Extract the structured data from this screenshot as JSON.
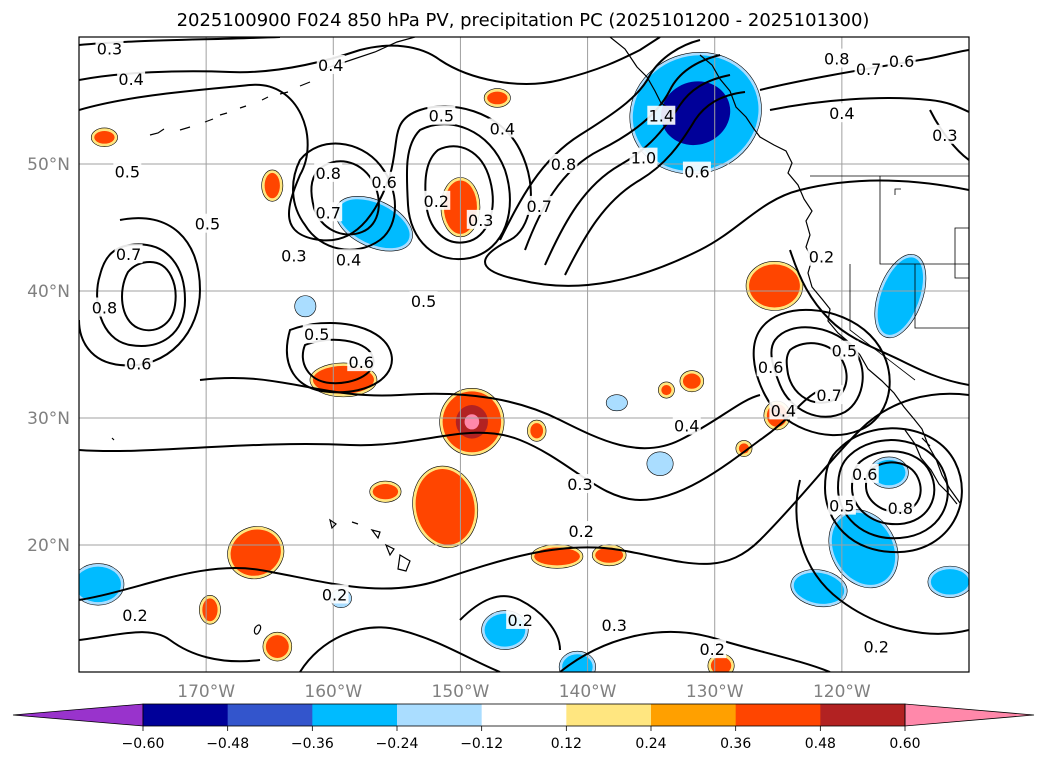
{
  "chart_data": {
    "type": "contour",
    "title": "2025100900 F024 850 hPa PV, precipitation PC (2025101200 - 2025101300)",
    "lon_range": [
      -180,
      -110
    ],
    "lat_range": [
      10,
      60
    ],
    "lon_ticks": [
      -170,
      -160,
      -150,
      -140,
      -130,
      -120
    ],
    "lon_tick_labels": [
      "170°W",
      "160°W",
      "150°W",
      "140°W",
      "130°W",
      "120°W"
    ],
    "lat_ticks": [
      20,
      30,
      40,
      50
    ],
    "lat_tick_labels": [
      "20°N",
      "30°N",
      "40°N",
      "50°N"
    ],
    "grid": true,
    "colorbar": {
      "orientation": "horizontal",
      "extend": "both",
      "boundaries": [
        -0.6,
        -0.48,
        -0.36,
        -0.24,
        -0.12,
        0.12,
        0.24,
        0.36,
        0.48,
        0.6
      ],
      "tick_labels": [
        "−0.60",
        "−0.48",
        "−0.36",
        "−0.24",
        "−0.12",
        "0.12",
        "0.24",
        "0.36",
        "0.48",
        "0.60"
      ],
      "colors": [
        "#9933cc",
        "#000099",
        "#3355cc",
        "#00bbff",
        "#aaddff",
        "#ffffff",
        "#ffe680",
        "#ffa000",
        "#ff4500",
        "#b22222",
        "#ff88aa"
      ]
    },
    "pv_contour_levels": [
      0.2,
      0.3,
      0.4,
      0.5,
      0.6,
      0.7,
      0.8,
      1.0,
      1.4
    ],
    "contour_labels": [
      {
        "text": "0.3",
        "lon": -177.6,
        "lat": 59.1
      },
      {
        "text": "0.4",
        "lon": -175.9,
        "lat": 56.7
      },
      {
        "text": "0.4",
        "lon": -160.2,
        "lat": 57.8
      },
      {
        "text": "0.5",
        "lon": -176.2,
        "lat": 49.4
      },
      {
        "text": "0.5",
        "lon": -169.9,
        "lat": 45.3
      },
      {
        "text": "0.7",
        "lon": -176.1,
        "lat": 42.9
      },
      {
        "text": "0.8",
        "lon": -178.0,
        "lat": 38.7
      },
      {
        "text": "0.6",
        "lon": -175.3,
        "lat": 34.3
      },
      {
        "text": "0.3",
        "lon": -163.1,
        "lat": 42.8
      },
      {
        "text": "0.8",
        "lon": -160.4,
        "lat": 49.3
      },
      {
        "text": "0.7",
        "lon": -160.4,
        "lat": 46.2
      },
      {
        "text": "0.6",
        "lon": -156.0,
        "lat": 48.6
      },
      {
        "text": "0.4",
        "lon": -158.8,
        "lat": 42.5
      },
      {
        "text": "0.5",
        "lon": -151.5,
        "lat": 53.8
      },
      {
        "text": "0.4",
        "lon": -146.7,
        "lat": 52.8
      },
      {
        "text": "0.2",
        "lon": -151.9,
        "lat": 47.1
      },
      {
        "text": "0.3",
        "lon": -148.4,
        "lat": 45.6
      },
      {
        "text": "0.7",
        "lon": -143.8,
        "lat": 46.7
      },
      {
        "text": "0.8",
        "lon": -141.9,
        "lat": 50.0
      },
      {
        "text": "0.5",
        "lon": -152.9,
        "lat": 39.2
      },
      {
        "text": "0.5",
        "lon": -161.3,
        "lat": 36.6
      },
      {
        "text": "0.6",
        "lon": -157.8,
        "lat": 34.4
      },
      {
        "text": "1.4",
        "lon": -134.2,
        "lat": 53.8
      },
      {
        "text": "1.0",
        "lon": -135.6,
        "lat": 50.5
      },
      {
        "text": "0.6",
        "lon": -131.4,
        "lat": 49.4
      },
      {
        "text": "0.8",
        "lon": -120.4,
        "lat": 58.3
      },
      {
        "text": "0.7",
        "lon": -117.9,
        "lat": 57.5
      },
      {
        "text": "0.6",
        "lon": -115.3,
        "lat": 58.1
      },
      {
        "text": "0.4",
        "lon": -120.0,
        "lat": 54.0
      },
      {
        "text": "0.3",
        "lon": -111.9,
        "lat": 52.3
      },
      {
        "text": "0.2",
        "lon": -121.6,
        "lat": 42.7
      },
      {
        "text": "0.5",
        "lon": -119.8,
        "lat": 35.3
      },
      {
        "text": "0.6",
        "lon": -125.6,
        "lat": 34.0
      },
      {
        "text": "0.7",
        "lon": -121.0,
        "lat": 31.8
      },
      {
        "text": "0.4",
        "lon": -132.2,
        "lat": 29.4
      },
      {
        "text": "0.4",
        "lon": -124.6,
        "lat": 30.6
      },
      {
        "text": "0.3",
        "lon": -140.6,
        "lat": 24.8
      },
      {
        "text": "0.2",
        "lon": -140.5,
        "lat": 21.1
      },
      {
        "text": "0.6",
        "lon": -118.2,
        "lat": 25.6
      },
      {
        "text": "0.5",
        "lon": -120.0,
        "lat": 23.1
      },
      {
        "text": "0.8",
        "lon": -115.4,
        "lat": 22.9
      },
      {
        "text": "0.2",
        "lon": -175.6,
        "lat": 14.5
      },
      {
        "text": "0.2",
        "lon": -159.9,
        "lat": 16.1
      },
      {
        "text": "0.2",
        "lon": -145.3,
        "lat": 14.1
      },
      {
        "text": "0.3",
        "lon": -137.9,
        "lat": 13.7
      },
      {
        "text": "0.2",
        "lon": -130.2,
        "lat": 11.8
      },
      {
        "text": "0.2",
        "lon": -117.3,
        "lat": 12.0
      }
    ],
    "precip_regions": [
      {
        "value": -0.5,
        "lon": -131.5,
        "lat": 54.0,
        "rlon": 5.0,
        "rlat": 4.5,
        "rot": -20
      },
      {
        "value": -0.36,
        "lon": -156.8,
        "lat": 45.3,
        "rlon": 3.0,
        "rlat": 1.6,
        "rot": 25
      },
      {
        "value": -0.4,
        "lon": -115.4,
        "lat": 39.6,
        "rlon": 1.5,
        "rlat": 3.2,
        "rot": 20
      },
      {
        "value": -0.36,
        "lon": -116.3,
        "lat": 25.7,
        "rlon": 1.3,
        "rlat": 1.0,
        "rot": 0
      },
      {
        "value": -0.45,
        "lon": -118.3,
        "lat": 19.7,
        "rlon": 2.3,
        "rlat": 3.0,
        "rot": -30
      },
      {
        "value": -0.36,
        "lon": -121.8,
        "lat": 16.6,
        "rlon": 2.0,
        "rlat": 1.2,
        "rot": 10
      },
      {
        "value": -0.36,
        "lon": -111.5,
        "lat": 17.1,
        "rlon": 1.5,
        "rlat": 1.0,
        "rot": 0
      },
      {
        "value": -0.36,
        "lon": -178.5,
        "lat": 16.9,
        "rlon": 1.8,
        "rlat": 1.4,
        "rot": 0
      },
      {
        "value": -0.36,
        "lon": -146.5,
        "lat": 13.3,
        "rlon": 1.6,
        "rlat": 1.3,
        "rot": 0
      },
      {
        "value": -0.36,
        "lon": -140.8,
        "lat": 10.4,
        "rlon": 1.2,
        "rlat": 1.0,
        "rot": 0
      },
      {
        "value": -0.24,
        "lon": -137.7,
        "lat": 31.2,
        "rlon": 0.6,
        "rlat": 0.4,
        "rot": 0
      },
      {
        "value": -0.24,
        "lon": -134.3,
        "lat": 26.4,
        "rlon": 0.8,
        "rlat": 0.7,
        "rot": 0
      },
      {
        "value": -0.24,
        "lon": -162.2,
        "lat": 38.8,
        "rlon": 0.6,
        "rlat": 0.6,
        "rot": 0
      },
      {
        "value": -0.24,
        "lon": -159.4,
        "lat": 15.8,
        "rlon": 0.6,
        "rlat": 0.5,
        "rot": 0
      },
      {
        "value": 0.42,
        "lon": -150.0,
        "lat": 46.6,
        "rlon": 1.3,
        "rlat": 2.1,
        "rot": 0
      },
      {
        "value": 0.36,
        "lon": -147.1,
        "lat": 55.2,
        "rlon": 0.8,
        "rlat": 0.5,
        "rot": 0
      },
      {
        "value": 0.36,
        "lon": -164.8,
        "lat": 48.3,
        "rlon": 0.6,
        "rlat": 1.0,
        "rot": 0
      },
      {
        "value": 0.36,
        "lon": -178.0,
        "lat": 52.1,
        "rlon": 0.8,
        "rlat": 0.5,
        "rot": 0
      },
      {
        "value": 0.42,
        "lon": -159.2,
        "lat": 33.0,
        "rlon": 2.4,
        "rlat": 1.1,
        "rot": 0
      },
      {
        "value": 0.6,
        "lon": -149.1,
        "lat": 29.7,
        "rlon": 2.3,
        "rlat": 2.4,
        "rot": 0
      },
      {
        "value": 0.42,
        "lon": -151.2,
        "lat": 23.0,
        "rlon": 2.3,
        "rlat": 3.0,
        "rot": -10
      },
      {
        "value": 0.36,
        "lon": -155.9,
        "lat": 24.2,
        "rlon": 1.0,
        "rlat": 0.6,
        "rot": 0
      },
      {
        "value": 0.36,
        "lon": -166.1,
        "lat": 19.4,
        "rlon": 2.0,
        "rlat": 1.8,
        "rot": -20
      },
      {
        "value": 0.36,
        "lon": -169.7,
        "lat": 14.9,
        "rlon": 0.6,
        "rlat": 0.9,
        "rot": 0
      },
      {
        "value": 0.36,
        "lon": -164.4,
        "lat": 12.0,
        "rlon": 0.9,
        "rlat": 0.9,
        "rot": 0
      },
      {
        "value": 0.36,
        "lon": -142.4,
        "lat": 19.1,
        "rlon": 1.8,
        "rlat": 0.7,
        "rot": 0
      },
      {
        "value": 0.36,
        "lon": -138.3,
        "lat": 19.2,
        "rlon": 1.1,
        "rlat": 0.6,
        "rot": 0
      },
      {
        "value": 0.36,
        "lon": -144.0,
        "lat": 29.0,
        "rlon": 0.5,
        "rlat": 0.6,
        "rot": 0
      },
      {
        "value": 0.36,
        "lon": -131.8,
        "lat": 32.9,
        "rlon": 0.7,
        "rlat": 0.6,
        "rot": 0
      },
      {
        "value": 0.36,
        "lon": -129.5,
        "lat": 10.5,
        "rlon": 0.8,
        "rlat": 0.7,
        "rot": 0
      },
      {
        "value": 0.36,
        "lon": -133.8,
        "lat": 32.2,
        "rlon": 0.4,
        "rlat": 0.4,
        "rot": 0
      },
      {
        "value": 0.42,
        "lon": -125.3,
        "lat": 40.4,
        "rlon": 2.0,
        "rlat": 1.7,
        "rot": 0
      },
      {
        "value": 0.36,
        "lon": -125.1,
        "lat": 30.2,
        "rlon": 0.8,
        "rlat": 0.9,
        "rot": 0
      },
      {
        "value": 0.36,
        "lon": -127.7,
        "lat": 27.6,
        "rlon": 0.4,
        "rlat": 0.4,
        "rot": 0
      }
    ]
  }
}
